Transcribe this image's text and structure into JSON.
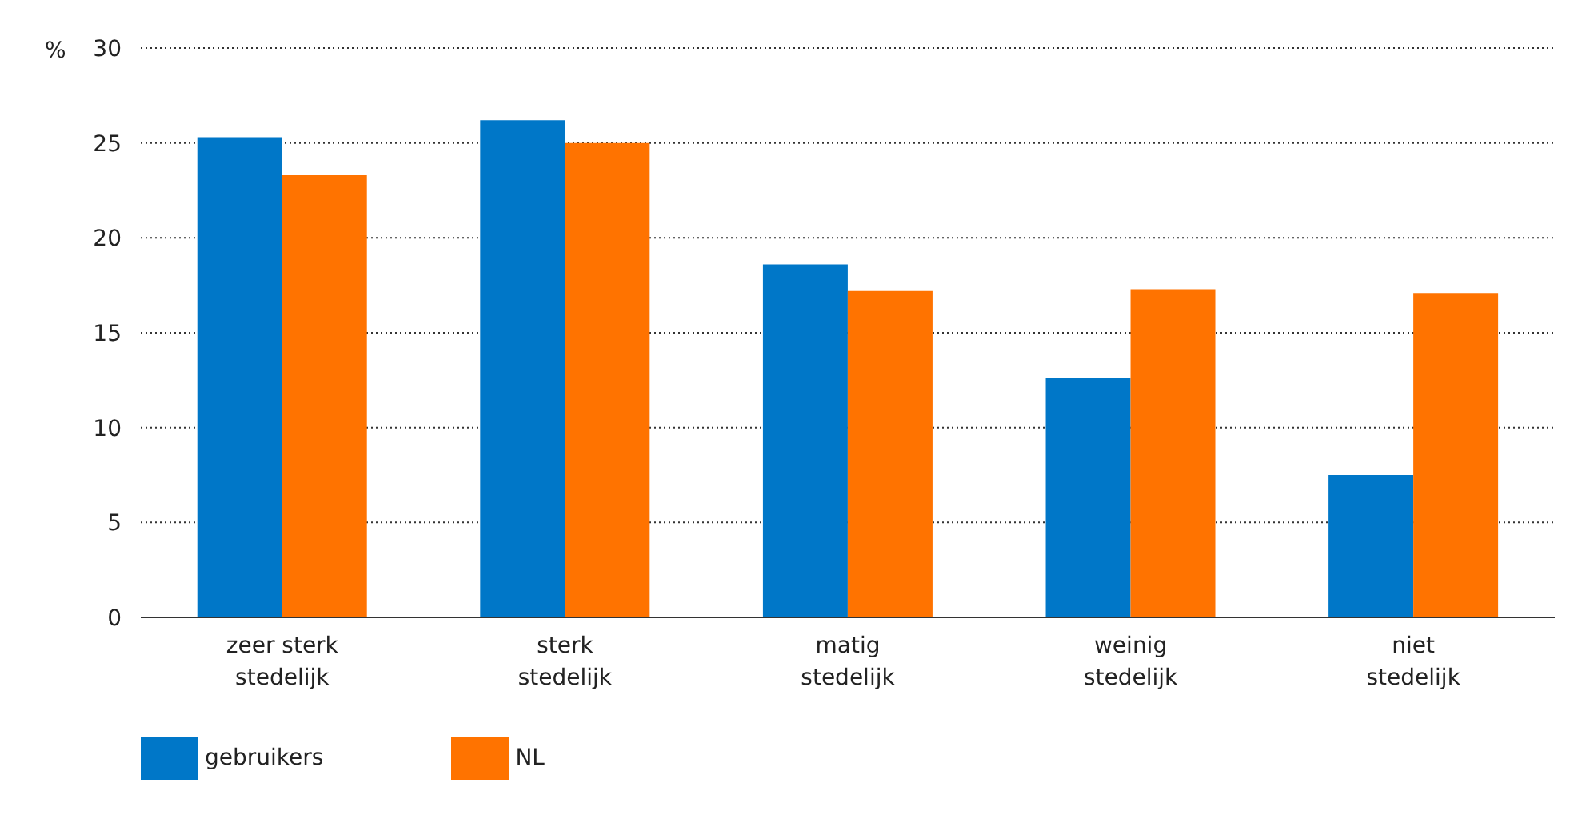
{
  "chart_data": {
    "type": "bar",
    "ylabel": "%",
    "categories": [
      "zeer sterk stedelijk",
      "sterk stedelijk",
      "matig stedelijk",
      "weinig stedelijk",
      "niet stedelijk"
    ],
    "series": [
      {
        "name": "gebruikers",
        "color": "#0077c8",
        "values": [
          25.3,
          26.2,
          18.6,
          12.6,
          7.5
        ]
      },
      {
        "name": "NL",
        "color": "#ff7300",
        "values": [
          23.3,
          25.0,
          17.2,
          17.3,
          17.1
        ]
      }
    ],
    "ylim": [
      0,
      30
    ],
    "yticks": [
      0,
      5,
      10,
      15,
      20,
      25,
      30
    ],
    "grid": "y",
    "legend": "bottom left"
  }
}
